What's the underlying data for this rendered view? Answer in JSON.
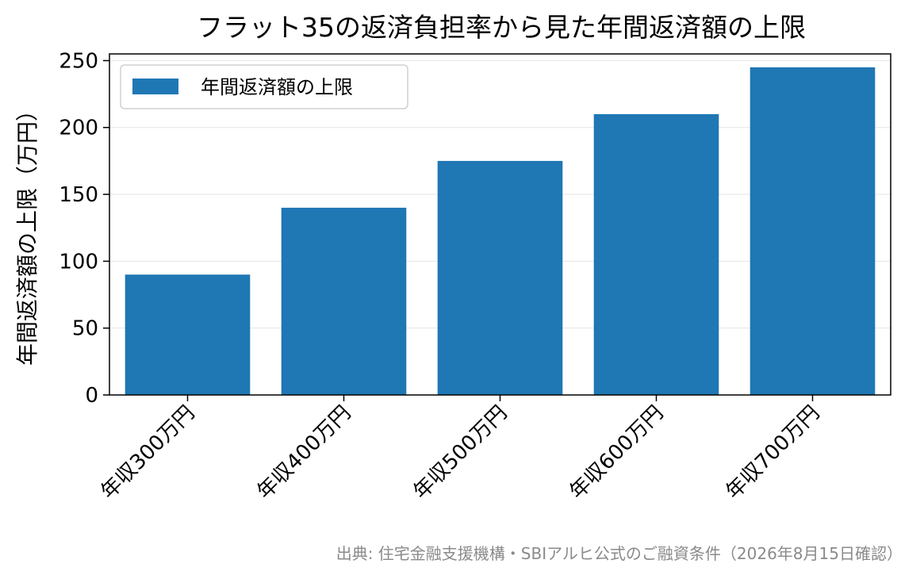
{
  "chart_data": {
    "type": "bar",
    "title": "フラット35の返済負担率から見た年間返済額の上限",
    "xlabel": "",
    "ylabel": "年間返済額の上限（万円）",
    "categories": [
      "年収300万円",
      "年収400万円",
      "年収500万円",
      "年収600万円",
      "年収700万円"
    ],
    "series": [
      {
        "name": "年間返済額の上限",
        "values": [
          90,
          140,
          175,
          210,
          245
        ]
      }
    ],
    "ylim": [
      0,
      255
    ],
    "yticks": [
      0,
      50,
      100,
      150,
      200,
      250
    ],
    "grid": "y",
    "legend_position": "top-left",
    "bar_color": "#1f77b4",
    "source_note": "出典: 住宅金融支援機構・SBIアルヒ公式のご融資条件（2026年8月15日確認）"
  }
}
